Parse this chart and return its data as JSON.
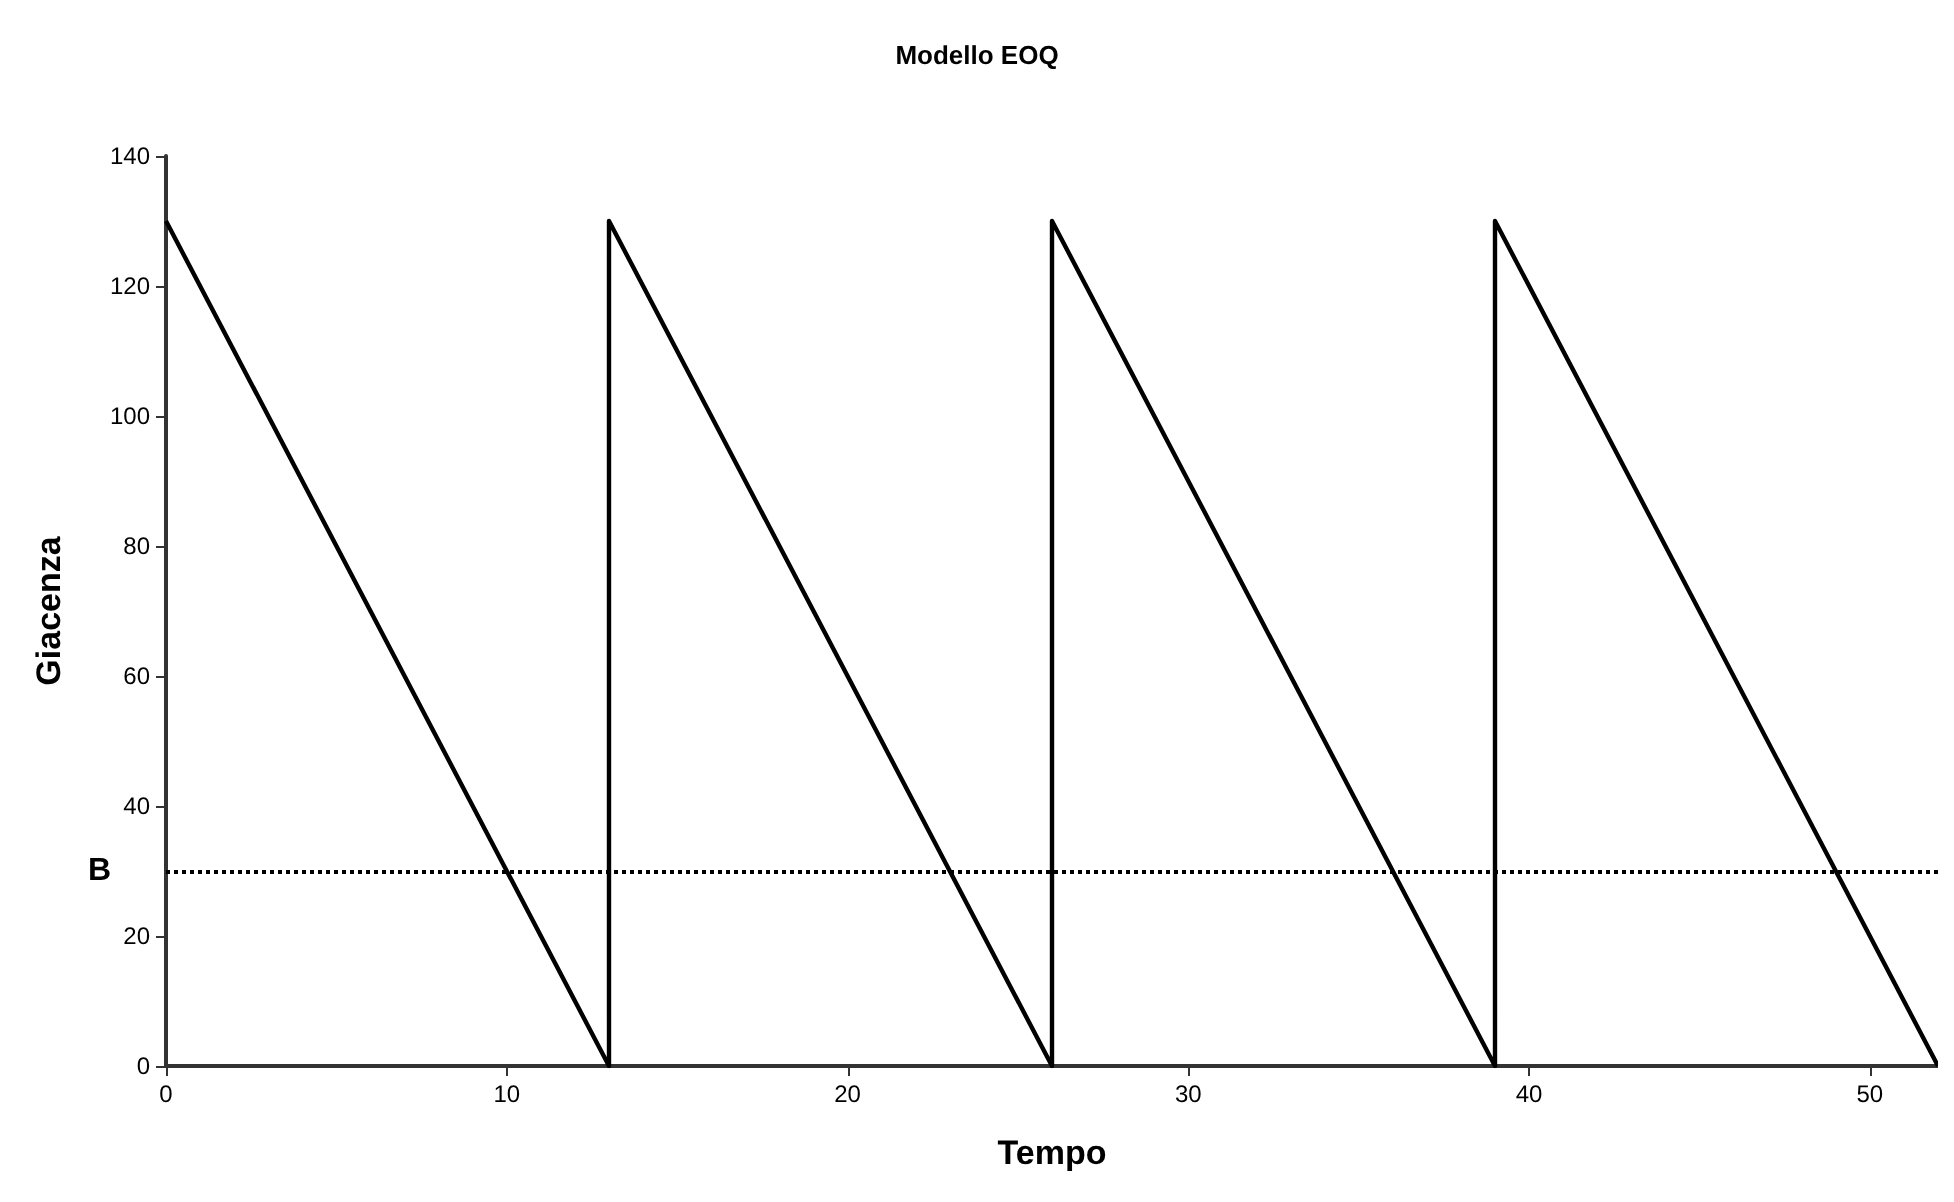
{
  "chart_data": {
    "type": "line",
    "title": "Modello EOQ",
    "xlabel": "Tempo",
    "ylabel": "Giacenza",
    "x": [
      0,
      13,
      13,
      26,
      26,
      39,
      39,
      52
    ],
    "series": [
      {
        "color": "#000000",
        "values": [
          130,
          0,
          130,
          0,
          130,
          0,
          130,
          0
        ]
      }
    ],
    "xlim": [
      0,
      52
    ],
    "xticks": [
      0,
      10,
      20,
      30,
      40,
      50
    ],
    "ylim": [
      0,
      140
    ],
    "yticks": [
      0,
      20,
      40,
      60,
      80,
      100,
      120,
      140
    ],
    "ref_lines": [
      {
        "axis": "y",
        "value": 30,
        "label": "B",
        "color": "#000000",
        "line_style": "dotted"
      }
    ],
    "grid": false,
    "marker": "none",
    "line_style": "solid"
  }
}
